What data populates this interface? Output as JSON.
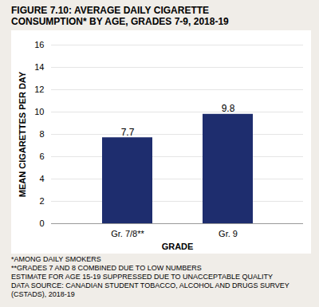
{
  "chart_data": {
    "type": "bar",
    "title": "FIGURE 7.10: AVERAGE DAILY CIGARETTE\nCONSUMPTION* BY AGE, GRADES 7-9, 2018-19",
    "categories": [
      "Gr. 7/8**",
      "Gr. 9"
    ],
    "values": [
      7.7,
      9.8
    ],
    "color": "#1e2d6e",
    "ylabel": "MEAN CIGARETTES PER DAY",
    "xlabel": "GRADE",
    "ylim": [
      0,
      16
    ],
    "yticks": [
      0,
      2,
      4,
      6,
      8,
      10,
      12,
      14,
      16
    ],
    "grid": true,
    "data_labels": true,
    "annotations": [
      "*AMONG DAILY SMOKERS",
      "**GRADES 7 AND 8 COMBINED DUE TO LOW NUMBERS",
      "ESTIMATE FOR AGE 15-19 SUPPRESSED DUE TO UNACCEPTABLE QUALITY",
      "DATA SOURCE: CANADIAN STUDENT TOBACCO, ALCOHOL AND DRUGS SURVEY",
      "(CSTADS), 2018-19"
    ]
  }
}
